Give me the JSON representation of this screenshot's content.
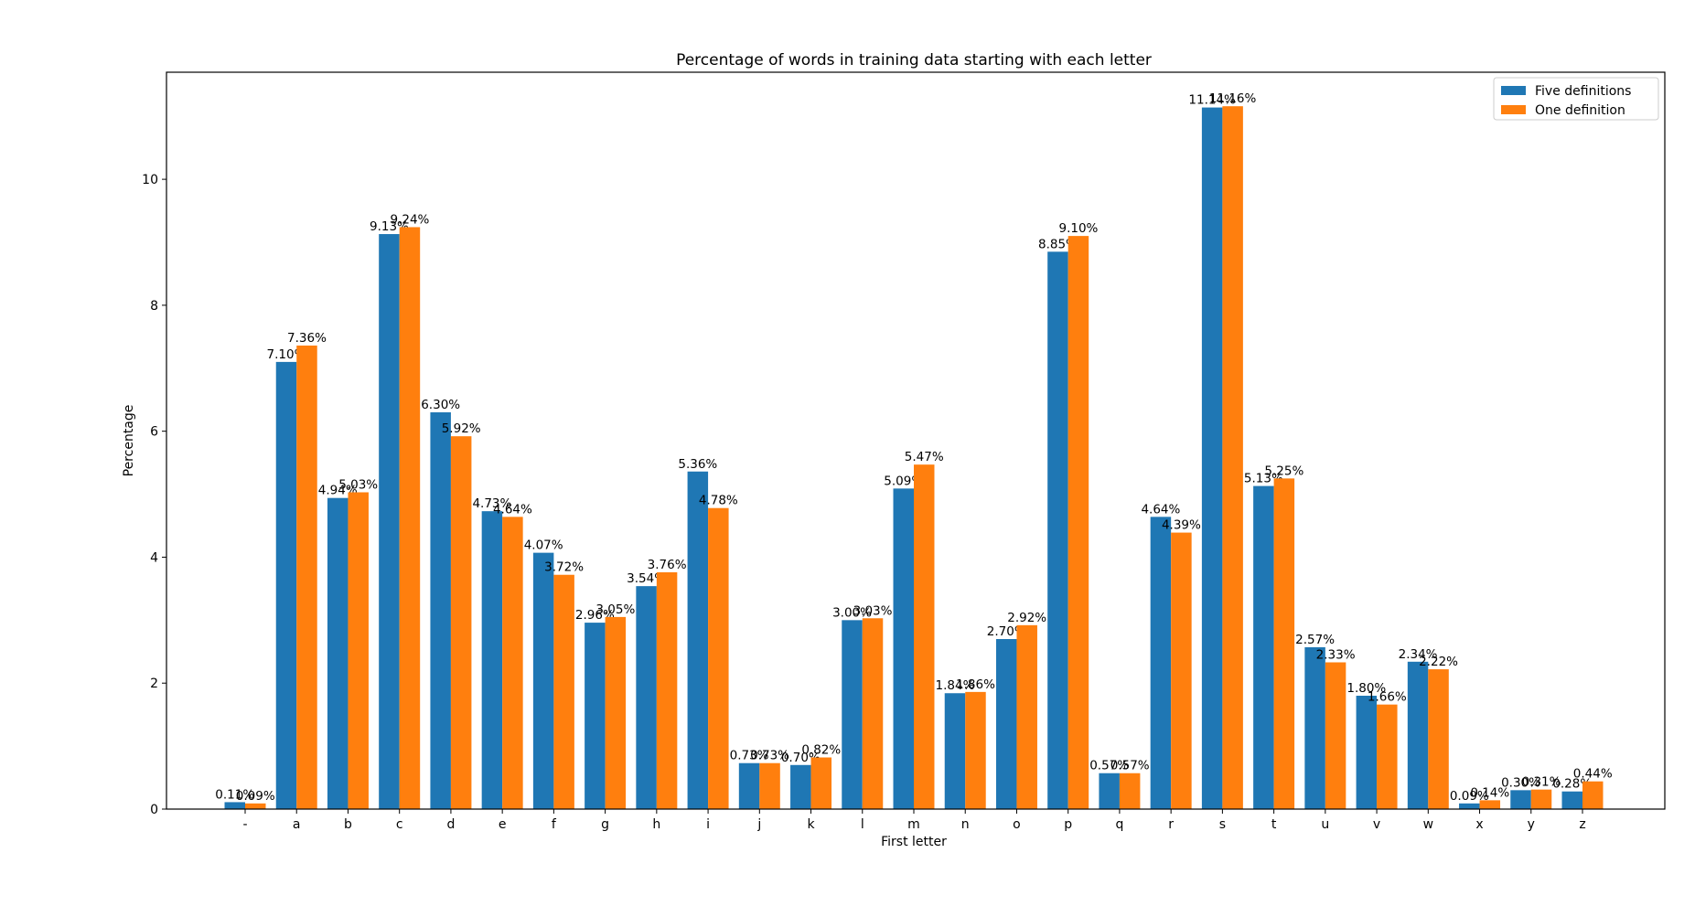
{
  "chart_data": {
    "type": "bar",
    "title": "Percentage of words in training data starting with each letter",
    "xlabel": "First letter",
    "ylabel": "Percentage",
    "ylim": [
      0,
      11.7
    ],
    "yticks": [
      "0",
      "2",
      "4",
      "6",
      "8",
      "10"
    ],
    "grid": false,
    "legend_position": "top-right",
    "categories": [
      "-",
      "a",
      "b",
      "c",
      "d",
      "e",
      "f",
      "g",
      "h",
      "i",
      "j",
      "k",
      "l",
      "m",
      "n",
      "o",
      "p",
      "q",
      "r",
      "s",
      "t",
      "u",
      "v",
      "w",
      "x",
      "y",
      "z"
    ],
    "series": [
      {
        "name": "Five definitions",
        "color": "#1f77b4",
        "values": [
          0.11,
          7.1,
          4.94,
          9.13,
          6.3,
          4.73,
          4.07,
          2.96,
          3.54,
          5.36,
          0.73,
          0.7,
          3.0,
          5.09,
          1.84,
          2.7,
          8.85,
          0.57,
          4.64,
          11.14,
          5.13,
          2.57,
          1.8,
          2.34,
          0.09,
          0.3,
          0.28
        ],
        "labels": [
          "0.11%",
          "7.10%",
          "4.94%",
          "9.13%",
          "6.30%",
          "4.73%",
          "4.07%",
          "2.96%",
          "3.54%",
          "5.36%",
          "0.73%",
          "0.70%",
          "3.00%",
          "5.09%",
          "1.84%",
          "2.70%",
          "8.85%",
          "0.57%",
          "4.64%",
          "11.14%",
          "5.13%",
          "2.57%",
          "1.80%",
          "2.34%",
          "0.09%",
          "0.30%",
          "0.28%"
        ]
      },
      {
        "name": "One definition",
        "color": "#ff7f0e",
        "values": [
          0.09,
          7.36,
          5.03,
          9.24,
          5.92,
          4.64,
          3.72,
          3.05,
          3.76,
          4.78,
          0.73,
          0.82,
          3.03,
          5.47,
          1.86,
          2.92,
          9.1,
          0.57,
          4.39,
          11.16,
          5.25,
          2.33,
          1.66,
          2.22,
          0.14,
          0.31,
          0.44
        ],
        "labels": [
          "0.09%",
          "7.36%",
          "5.03%",
          "9.24%",
          "5.92%",
          "4.64%",
          "3.72%",
          "3.05%",
          "3.76%",
          "4.78%",
          "0.73%",
          "0.82%",
          "3.03%",
          "5.47%",
          "1.86%",
          "2.92%",
          "9.10%",
          "0.57%",
          "4.39%",
          "11.16%",
          "5.25%",
          "2.33%",
          "1.66%",
          "2.22%",
          "0.14%",
          "0.31%",
          "0.44%"
        ]
      }
    ]
  }
}
